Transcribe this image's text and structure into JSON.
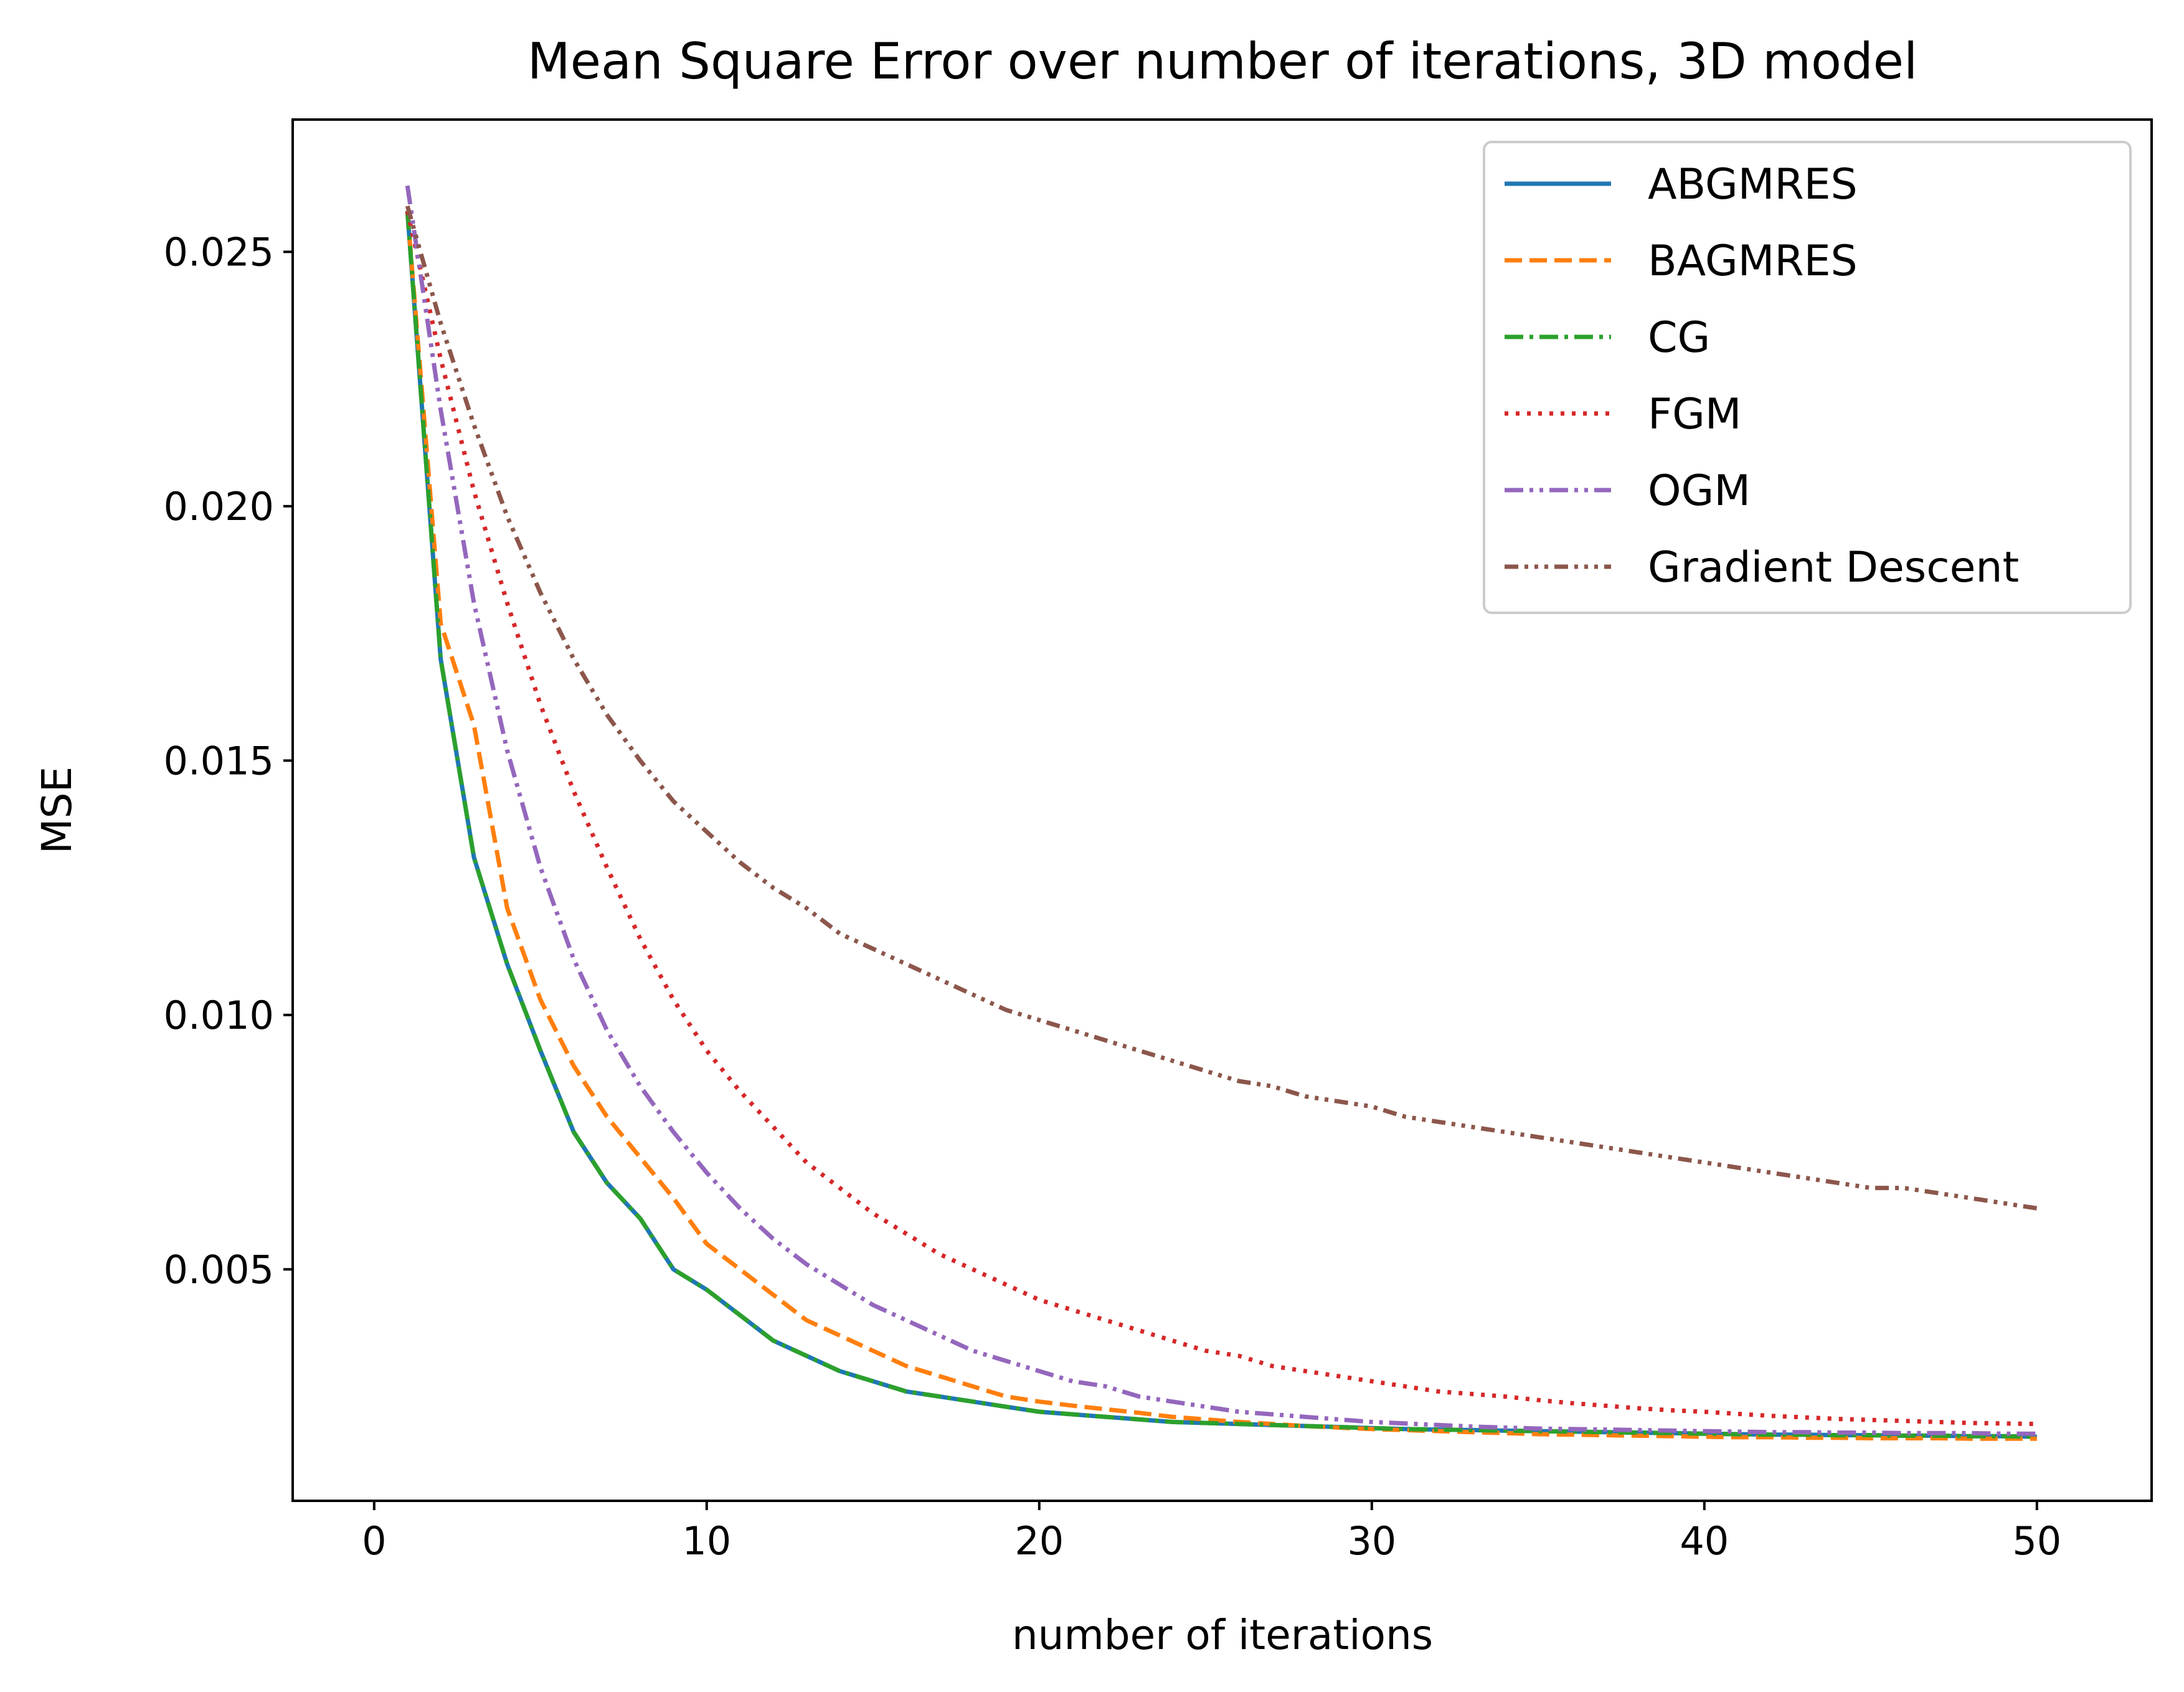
{
  "chart_data": {
    "type": "line",
    "title": "Mean Square Error over number of iterations, 3D model",
    "xlabel": "number of iterations",
    "ylabel": "MSE",
    "xlim": [
      -2.45,
      53.45
    ],
    "ylim": [
      0.00045,
      0.0276
    ],
    "xticks": [
      0,
      10,
      20,
      30,
      40,
      50
    ],
    "xtick_labels": [
      "0",
      "10",
      "20",
      "30",
      "40",
      "50"
    ],
    "yticks": [
      0.005,
      0.01,
      0.015,
      0.02,
      0.025
    ],
    "ytick_labels": [
      "0.005",
      "0.010",
      "0.015",
      "0.020",
      "0.025"
    ],
    "grid": false,
    "legend_position": "top-right",
    "x": [
      1,
      2,
      3,
      4,
      5,
      6,
      7,
      8,
      9,
      10,
      11,
      12,
      13,
      14,
      15,
      16,
      17,
      18,
      19,
      20,
      21,
      22,
      23,
      24,
      25,
      26,
      27,
      28,
      29,
      30,
      31,
      32,
      33,
      34,
      35,
      36,
      37,
      38,
      39,
      40,
      41,
      42,
      43,
      44,
      45,
      46,
      47,
      48,
      49,
      50
    ],
    "series": [
      {
        "name": "ABGMRES",
        "color": "#1f77b4",
        "dash": "solid",
        "values": [
          0.0258,
          0.017,
          0.0131,
          0.011,
          0.0093,
          0.0077,
          0.0067,
          0.006,
          0.005,
          0.0046,
          0.0041,
          0.0036,
          0.0033,
          0.003,
          0.0028,
          0.0026,
          0.0025,
          0.0024,
          0.0023,
          0.0022,
          0.00215,
          0.0021,
          0.00205,
          0.002,
          0.00198,
          0.00196,
          0.00194,
          0.00192,
          0.0019,
          0.00188,
          0.00186,
          0.00185,
          0.00184,
          0.00183,
          0.00182,
          0.00181,
          0.0018,
          0.00179,
          0.00178,
          0.00177,
          0.00176,
          0.00175,
          0.00175,
          0.00174,
          0.00174,
          0.00173,
          0.00173,
          0.00172,
          0.00172,
          0.00171
        ]
      },
      {
        "name": "BAGMRES",
        "color": "#ff7f0e",
        "dash": "dashed",
        "values": [
          0.0258,
          0.0177,
          0.0157,
          0.0121,
          0.0103,
          0.009,
          0.008,
          0.0072,
          0.0064,
          0.0055,
          0.005,
          0.0045,
          0.004,
          0.0037,
          0.0034,
          0.0031,
          0.0029,
          0.0027,
          0.0025,
          0.0024,
          0.00232,
          0.00225,
          0.00218,
          0.0021,
          0.00205,
          0.002,
          0.00196,
          0.00192,
          0.00189,
          0.00186,
          0.00184,
          0.00182,
          0.0018,
          0.00178,
          0.00176,
          0.00175,
          0.00174,
          0.00173,
          0.00172,
          0.00171,
          0.0017,
          0.0017,
          0.00169,
          0.00169,
          0.00168,
          0.00168,
          0.00168,
          0.00167,
          0.00167,
          0.00167
        ]
      },
      {
        "name": "CG",
        "color": "#2ca02c",
        "dash": "dashdot",
        "values": [
          0.0258,
          0.017,
          0.0131,
          0.011,
          0.0093,
          0.0077,
          0.0067,
          0.006,
          0.005,
          0.0046,
          0.0041,
          0.0036,
          0.0033,
          0.003,
          0.0028,
          0.0026,
          0.0025,
          0.0024,
          0.0023,
          0.0022,
          0.00215,
          0.0021,
          0.00205,
          0.002,
          0.00198,
          0.00196,
          0.00194,
          0.00192,
          0.0019,
          0.00188,
          0.00186,
          0.00185,
          0.00184,
          0.00183,
          0.00182,
          0.00181,
          0.0018,
          0.00179,
          0.00178,
          0.00177,
          0.00176,
          0.00175,
          0.00175,
          0.00174,
          0.00174,
          0.00173,
          0.00173,
          0.00172,
          0.00172,
          0.00171
        ]
      },
      {
        "name": "FGM",
        "color": "#d62728",
        "dash": "dotted",
        "values": [
          0.0258,
          0.0229,
          0.0203,
          0.0181,
          0.0161,
          0.0144,
          0.0129,
          0.0115,
          0.0103,
          0.0093,
          0.0085,
          0.0078,
          0.0071,
          0.0066,
          0.0061,
          0.0057,
          0.0053,
          0.005,
          0.0047,
          0.0044,
          0.0042,
          0.004,
          0.0038,
          0.0036,
          0.0034,
          0.0033,
          0.0031,
          0.003,
          0.0029,
          0.0028,
          0.0027,
          0.0026,
          0.00255,
          0.0025,
          0.00243,
          0.00237,
          0.00232,
          0.00227,
          0.00223,
          0.0022,
          0.00216,
          0.00212,
          0.00209,
          0.00206,
          0.00204,
          0.00202,
          0.002,
          0.00198,
          0.00197,
          0.00196
        ]
      },
      {
        "name": "OGM",
        "color": "#9467bd",
        "dash": "dashdotdot",
        "values": [
          0.0263,
          0.0219,
          0.0181,
          0.0152,
          0.0129,
          0.0111,
          0.0097,
          0.0086,
          0.0077,
          0.0069,
          0.0062,
          0.0056,
          0.0051,
          0.0047,
          0.0043,
          0.004,
          0.0037,
          0.0034,
          0.0032,
          0.003,
          0.0028,
          0.0027,
          0.0025,
          0.0024,
          0.0023,
          0.0022,
          0.00215,
          0.0021,
          0.00205,
          0.002,
          0.00197,
          0.00194,
          0.00191,
          0.00189,
          0.00187,
          0.00186,
          0.00185,
          0.00184,
          0.00183,
          0.00182,
          0.00181,
          0.0018,
          0.0018,
          0.00179,
          0.00179,
          0.00178,
          0.00178,
          0.00178,
          0.00177,
          0.00177
        ]
      },
      {
        "name": "Gradient Descent",
        "color": "#8c564b",
        "dash": "dashdotdotdot",
        "values": [
          0.0259,
          0.0236,
          0.0216,
          0.0198,
          0.0183,
          0.017,
          0.0159,
          0.015,
          0.0142,
          0.0136,
          0.013,
          0.0125,
          0.0121,
          0.0116,
          0.0113,
          0.011,
          0.0107,
          0.0104,
          0.0101,
          0.0099,
          0.0097,
          0.0095,
          0.0093,
          0.0091,
          0.0089,
          0.0087,
          0.0086,
          0.0084,
          0.0083,
          0.0082,
          0.008,
          0.0079,
          0.0078,
          0.0077,
          0.0076,
          0.0075,
          0.0074,
          0.0073,
          0.0072,
          0.0071,
          0.007,
          0.0069,
          0.0068,
          0.0067,
          0.0066,
          0.0066,
          0.0065,
          0.0064,
          0.0063,
          0.0062
        ]
      }
    ]
  }
}
